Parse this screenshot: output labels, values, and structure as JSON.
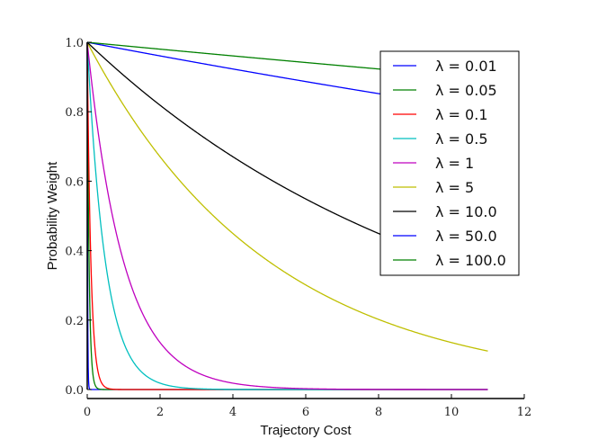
{
  "chart_data": {
    "type": "line",
    "title": "",
    "xlabel": "Trajectory Cost",
    "ylabel": "Probability Weight",
    "xlim": [
      0,
      12
    ],
    "ylim": [
      0,
      1.0
    ],
    "xticks": [
      "0",
      "2",
      "4",
      "6",
      "8",
      "10",
      "12"
    ],
    "yticks": [
      "0.0",
      "0.2",
      "0.4",
      "0.6",
      "0.8",
      "1.0"
    ],
    "grid": false,
    "legend_position": "top-right",
    "function": "exp(-cost / lambda)",
    "x_range": [
      0,
      11
    ],
    "series": [
      {
        "name": "λ = 0.01",
        "lambda": 0.01,
        "color": "#0000ff"
      },
      {
        "name": "λ = 0.05",
        "lambda": 0.05,
        "color": "#008000"
      },
      {
        "name": "λ = 0.1",
        "lambda": 0.1,
        "color": "#ff0000"
      },
      {
        "name": "λ = 0.5",
        "lambda": 0.5,
        "color": "#00bfbf"
      },
      {
        "name": "λ = 1",
        "lambda": 1,
        "color": "#bf00bf"
      },
      {
        "name": "λ = 5",
        "lambda": 5,
        "color": "#bfbf00"
      },
      {
        "name": "λ = 10.0",
        "lambda": 10.0,
        "color": "#000000"
      },
      {
        "name": "λ = 50.0",
        "lambda": 50.0,
        "color": "#0000ff"
      },
      {
        "name": "λ = 100.0",
        "lambda": 100.0,
        "color": "#008000"
      }
    ]
  }
}
